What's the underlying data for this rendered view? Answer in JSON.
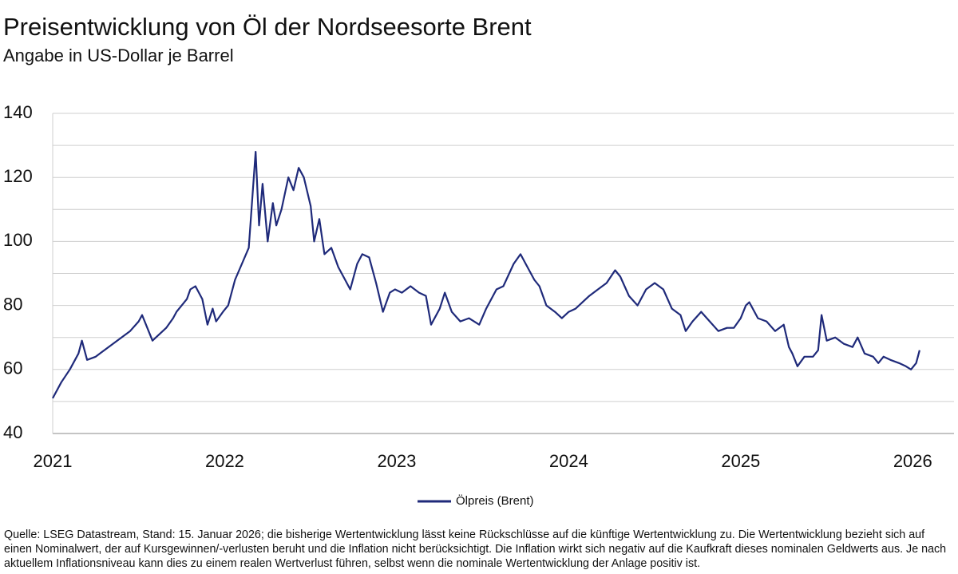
{
  "chart_data": {
    "type": "line",
    "title": "Preisentwicklung von Öl der Nordseesorte Brent",
    "subtitle": "Angabe in US-Dollar je Barrel",
    "source": "Quelle: LSEG Datastream, Stand: 15. Januar 2026; die bisherige Wertentwicklung lässt keine Rückschlüsse auf die künftige Wertentwicklung zu. Die Wertentwicklung bezieht sich auf einen Nominalwert, der auf Kursgewinnen/-verlusten beruht und die Inflation nicht berücksichtigt. Die Inflation wirkt sich negativ auf die Kaufkraft dieses nominalen Geldwerts aus. Je nach aktuellem Inflationsniveau kann dies zu einem realen Wertverlust führen, selbst wenn die nominale Wertentwicklung der Anlage positiv ist.",
    "x": [
      2021.0,
      2021.05,
      2021.1,
      2021.15,
      2021.17,
      2021.2,
      2021.25,
      2021.3,
      2021.35,
      2021.4,
      2021.45,
      2021.5,
      2021.52,
      2021.55,
      2021.58,
      2021.62,
      2021.66,
      2021.7,
      2021.72,
      2021.78,
      2021.8,
      2021.83,
      2021.87,
      2021.9,
      2021.93,
      2021.95,
      2021.99,
      2022.02,
      2022.06,
      2022.1,
      2022.14,
      2022.18,
      2022.2,
      2022.22,
      2022.25,
      2022.28,
      2022.3,
      2022.33,
      2022.37,
      2022.4,
      2022.43,
      2022.46,
      2022.5,
      2022.52,
      2022.55,
      2022.58,
      2022.62,
      2022.66,
      2022.7,
      2022.73,
      2022.77,
      2022.8,
      2022.84,
      2022.88,
      2022.92,
      2022.96,
      2022.99,
      2023.03,
      2023.08,
      2023.13,
      2023.17,
      2023.2,
      2023.25,
      2023.28,
      2023.32,
      2023.37,
      2023.42,
      2023.48,
      2023.52,
      2023.58,
      2023.62,
      2023.68,
      2023.72,
      2023.75,
      2023.8,
      2023.83,
      2023.87,
      2023.92,
      2023.96,
      2024.0,
      2024.04,
      2024.08,
      2024.12,
      2024.17,
      2024.22,
      2024.27,
      2024.3,
      2024.35,
      2024.4,
      2024.45,
      2024.5,
      2024.55,
      2024.6,
      2024.65,
      2024.68,
      2024.72,
      2024.77,
      2024.82,
      2024.87,
      2024.92,
      2024.96,
      2025.0,
      2025.03,
      2025.05,
      2025.1,
      2025.15,
      2025.2,
      2025.25,
      2025.28,
      2025.3,
      2025.33,
      2025.37,
      2025.42,
      2025.45,
      2025.47,
      2025.5,
      2025.55,
      2025.6,
      2025.65,
      2025.68,
      2025.72,
      2025.77,
      2025.8,
      2025.83,
      2025.87,
      2025.92,
      2025.96,
      2025.99,
      2026.02,
      2026.04
    ],
    "series": [
      {
        "name": "Ölpreis (Brent)",
        "color": "#1f2a7a",
        "values": [
          51,
          56,
          60,
          65,
          69,
          63,
          64,
          66,
          68,
          70,
          72,
          75,
          77,
          73,
          69,
          71,
          73,
          76,
          78,
          82,
          85,
          86,
          82,
          74,
          79,
          75,
          78,
          80,
          88,
          93,
          98,
          128,
          105,
          118,
          100,
          112,
          105,
          110,
          120,
          116,
          123,
          120,
          111,
          100,
          107,
          96,
          98,
          92,
          88,
          85,
          93,
          96,
          95,
          87,
          78,
          84,
          85,
          84,
          86,
          84,
          83,
          74,
          79,
          84,
          78,
          75,
          76,
          74,
          79,
          85,
          86,
          93,
          96,
          93,
          88,
          86,
          80,
          78,
          76,
          78,
          79,
          81,
          83,
          85,
          87,
          91,
          89,
          83,
          80,
          85,
          87,
          85,
          79,
          77,
          72,
          75,
          78,
          75,
          72,
          73,
          73,
          76,
          80,
          81,
          76,
          75,
          72,
          74,
          67,
          65,
          61,
          64,
          64,
          66,
          77,
          69,
          70,
          68,
          67,
          70,
          65,
          64,
          62,
          64,
          63,
          62,
          61,
          60,
          62,
          66
        ]
      }
    ],
    "xlim": [
      2021,
      2026.24
    ],
    "xticks": [
      2021,
      2022,
      2023,
      2024,
      2025,
      2026
    ],
    "ylim": [
      40,
      140
    ],
    "yticks": [
      40,
      60,
      80,
      100,
      120,
      140
    ],
    "ygrid": [
      40,
      50,
      60,
      70,
      80,
      90,
      100,
      110,
      120,
      130,
      140
    ]
  }
}
